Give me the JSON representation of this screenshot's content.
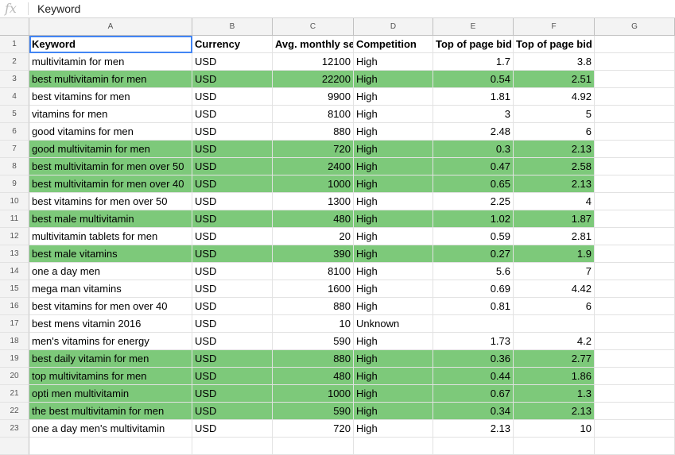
{
  "formula_bar": {
    "icon": "fx",
    "content": "Keyword"
  },
  "columns": [
    "A",
    "B",
    "C",
    "D",
    "E",
    "F",
    "G"
  ],
  "header_row": {
    "row_number": "1",
    "cells": [
      "Keyword",
      "Currency",
      "Avg. monthly searches",
      "Competition",
      "Top of page bid (low range)",
      "Top of page bid (high range)",
      ""
    ]
  },
  "rows": [
    {
      "n": "2",
      "cells": [
        "multivitamin for men",
        "USD",
        "12100",
        "High",
        "1.7",
        "3.8",
        ""
      ],
      "highlight": false
    },
    {
      "n": "3",
      "cells": [
        "best multivitamin for men",
        "USD",
        "22200",
        "High",
        "0.54",
        "2.51",
        ""
      ],
      "highlight": true
    },
    {
      "n": "4",
      "cells": [
        "best vitamins for men",
        "USD",
        "9900",
        "High",
        "1.81",
        "4.92",
        ""
      ],
      "highlight": false
    },
    {
      "n": "5",
      "cells": [
        "vitamins for men",
        "USD",
        "8100",
        "High",
        "3",
        "5",
        ""
      ],
      "highlight": false
    },
    {
      "n": "6",
      "cells": [
        "good vitamins for men",
        "USD",
        "880",
        "High",
        "2.48",
        "6",
        ""
      ],
      "highlight": false
    },
    {
      "n": "7",
      "cells": [
        "good multivitamin for men",
        "USD",
        "720",
        "High",
        "0.3",
        "2.13",
        ""
      ],
      "highlight": true
    },
    {
      "n": "8",
      "cells": [
        "best multivitamin for men over 50",
        "USD",
        "2400",
        "High",
        "0.47",
        "2.58",
        ""
      ],
      "highlight": true
    },
    {
      "n": "9",
      "cells": [
        "best multivitamin for men over 40",
        "USD",
        "1000",
        "High",
        "0.65",
        "2.13",
        ""
      ],
      "highlight": true
    },
    {
      "n": "10",
      "cells": [
        "best vitamins for men over 50",
        "USD",
        "1300",
        "High",
        "2.25",
        "4",
        ""
      ],
      "highlight": false
    },
    {
      "n": "11",
      "cells": [
        "best male multivitamin",
        "USD",
        "480",
        "High",
        "1.02",
        "1.87",
        ""
      ],
      "highlight": true
    },
    {
      "n": "12",
      "cells": [
        "multivitamin tablets for men",
        "USD",
        "20",
        "High",
        "0.59",
        "2.81",
        ""
      ],
      "highlight": false
    },
    {
      "n": "13",
      "cells": [
        "best male vitamins",
        "USD",
        "390",
        "High",
        "0.27",
        "1.9",
        ""
      ],
      "highlight": true
    },
    {
      "n": "14",
      "cells": [
        "one a day men",
        "USD",
        "8100",
        "High",
        "5.6",
        "7",
        ""
      ],
      "highlight": false
    },
    {
      "n": "15",
      "cells": [
        "mega man vitamins",
        "USD",
        "1600",
        "High",
        "0.69",
        "4.42",
        ""
      ],
      "highlight": false
    },
    {
      "n": "16",
      "cells": [
        "best vitamins for men over 40",
        "USD",
        "880",
        "High",
        "0.81",
        "6",
        ""
      ],
      "highlight": false
    },
    {
      "n": "17",
      "cells": [
        "best mens vitamin 2016",
        "USD",
        "10",
        "Unknown",
        "",
        "",
        ""
      ],
      "highlight": false
    },
    {
      "n": "18",
      "cells": [
        "men's vitamins for energy",
        "USD",
        "590",
        "High",
        "1.73",
        "4.2",
        ""
      ],
      "highlight": false
    },
    {
      "n": "19",
      "cells": [
        "best daily vitamin for men",
        "USD",
        "880",
        "High",
        "0.36",
        "2.77",
        ""
      ],
      "highlight": true
    },
    {
      "n": "20",
      "cells": [
        "top multivitamins for men",
        "USD",
        "480",
        "High",
        "0.44",
        "1.86",
        ""
      ],
      "highlight": true
    },
    {
      "n": "21",
      "cells": [
        "opti men multivitamin",
        "USD",
        "1000",
        "High",
        "0.67",
        "1.3",
        ""
      ],
      "highlight": true
    },
    {
      "n": "22",
      "cells": [
        "the best multivitamin for men",
        "USD",
        "590",
        "High",
        "0.34",
        "2.13",
        ""
      ],
      "highlight": true
    },
    {
      "n": "23",
      "cells": [
        "one a day men's multivitamin",
        "USD",
        "720",
        "High",
        "2.13",
        "10",
        ""
      ],
      "highlight": false
    },
    {
      "n": "",
      "cells": [
        "",
        "",
        "",
        "",
        "",
        "",
        ""
      ],
      "highlight": false
    }
  ],
  "colors": {
    "highlight": "#7dc97a",
    "selection": "#4285f4",
    "header_bg": "#f3f3f3"
  }
}
